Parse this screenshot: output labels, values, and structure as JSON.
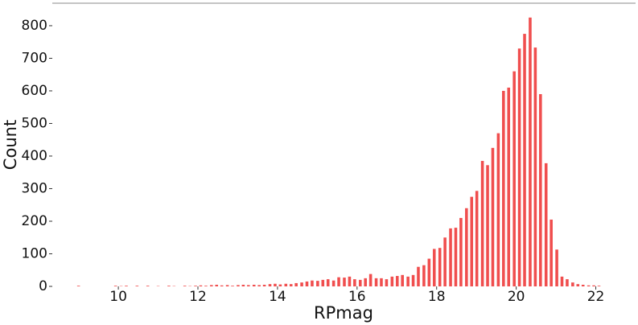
{
  "chart_data": {
    "type": "bar",
    "x_label": "RPmag",
    "y_label": "Count",
    "color": "#f04e4e",
    "x": [
      9.0,
      9.13,
      9.27,
      9.4,
      9.53,
      9.67,
      9.8,
      9.93,
      10.07,
      10.2,
      10.34,
      10.47,
      10.6,
      10.74,
      10.87,
      11.0,
      11.14,
      11.27,
      11.4,
      11.54,
      11.67,
      11.8,
      11.94,
      12.07,
      12.2,
      12.34,
      12.47,
      12.6,
      12.74,
      12.87,
      13.01,
      13.14,
      13.27,
      13.41,
      13.54,
      13.67,
      13.81,
      13.94,
      14.07,
      14.21,
      14.34,
      14.47,
      14.61,
      14.74,
      14.87,
      15.01,
      15.14,
      15.27,
      15.41,
      15.54,
      15.68,
      15.81,
      15.94,
      16.08,
      16.21,
      16.34,
      16.48,
      16.61,
      16.74,
      16.88,
      17.01,
      17.14,
      17.28,
      17.41,
      17.54,
      17.68,
      17.81,
      17.94,
      18.08,
      18.21,
      18.35,
      18.48,
      18.61,
      18.75,
      18.88,
      19.01,
      19.15,
      19.28,
      19.41,
      19.55,
      19.68,
      19.81,
      19.95,
      20.08,
      20.21,
      20.35,
      20.48,
      20.61,
      20.75,
      20.88,
      21.02,
      21.15,
      21.28,
      21.42,
      21.55,
      21.68,
      21.82,
      21.95,
      22.08
    ],
    "values": [
      2,
      0,
      0,
      0,
      0,
      0,
      0,
      2,
      1,
      2,
      0,
      2,
      0,
      2,
      0,
      1,
      0,
      2,
      1,
      0,
      2,
      1,
      2,
      3,
      2,
      4,
      5,
      3,
      4,
      2,
      4,
      5,
      4,
      5,
      4,
      5,
      7,
      8,
      6,
      8,
      7,
      10,
      12,
      15,
      18,
      17,
      20,
      22,
      18,
      28,
      27,
      30,
      22,
      20,
      25,
      38,
      25,
      25,
      22,
      30,
      32,
      35,
      30,
      35,
      60,
      65,
      85,
      115,
      118,
      150,
      178,
      180,
      210,
      240,
      275,
      293,
      385,
      372,
      425,
      470,
      600,
      610,
      660,
      730,
      775,
      825,
      733,
      590,
      378,
      205,
      113,
      30,
      22,
      12,
      7,
      5,
      3,
      3,
      2
    ],
    "xlim": [
      8.34,
      23.0
    ],
    "ylim": [
      0,
      869
    ],
    "xticks": [
      10,
      12,
      14,
      16,
      18,
      20,
      22
    ],
    "yticks": [
      0,
      100,
      200,
      300,
      400,
      500,
      600,
      700,
      800
    ]
  }
}
